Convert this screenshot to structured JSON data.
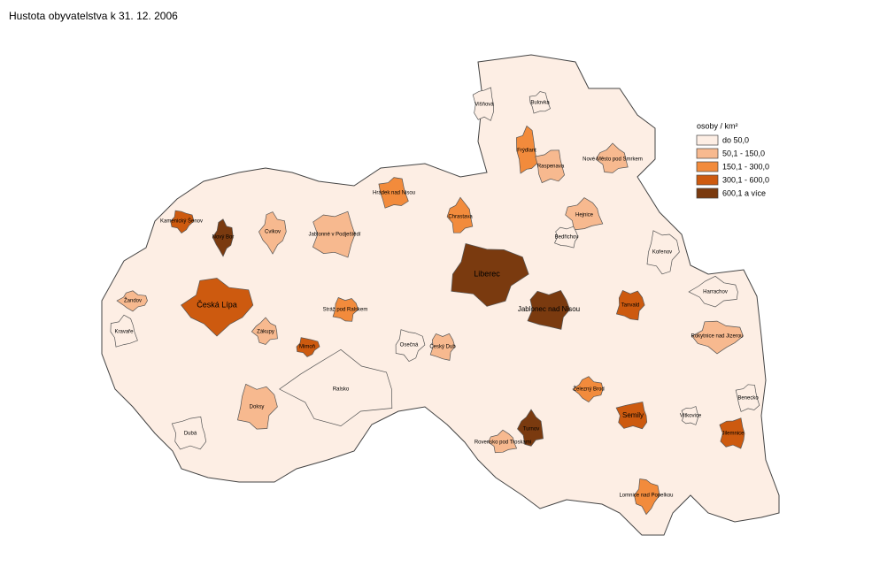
{
  "header": {
    "title": "Hustota obyvatelstva k 31. 12. 2006"
  },
  "legend": {
    "title": "osoby / km²",
    "items": [
      {
        "label": "do 50,0",
        "color": "#fdeee4"
      },
      {
        "label": "50,1 - 150,0",
        "color": "#f7b98f"
      },
      {
        "label": "150,1 - 300,0",
        "color": "#f28b3c"
      },
      {
        "label": "300,1 - 600,0",
        "color": "#cd5a0f"
      },
      {
        "label": "600,1 a více",
        "color": "#7a3a0f"
      }
    ]
  },
  "regions": [
    {
      "name": "Ralsko",
      "class": 0
    },
    {
      "name": "Česká Lípa",
      "class": 3
    },
    {
      "name": "Liberec",
      "class": 4
    },
    {
      "name": "Jablonec nad Nisou",
      "class": 4
    },
    {
      "name": "Semily",
      "class": 3
    },
    {
      "name": "Frýdlant",
      "class": 2
    },
    {
      "name": "Turnov",
      "class": 4
    },
    {
      "name": "Nový Bor",
      "class": 4
    },
    {
      "name": "Mimoň",
      "class": 3
    },
    {
      "name": "Tanvald",
      "class": 3
    },
    {
      "name": "Jilemnice",
      "class": 3
    },
    {
      "name": "Hrádek nad Nisou",
      "class": 2
    },
    {
      "name": "Chrastava",
      "class": 2
    },
    {
      "name": "Železný Brod",
      "class": 2
    },
    {
      "name": "Lomnice nad Popelkou",
      "class": 2
    },
    {
      "name": "Doksy",
      "class": 1
    },
    {
      "name": "Jablonné v Podještědí",
      "class": 1
    },
    {
      "name": "Raspenava",
      "class": 1
    },
    {
      "name": "Hejnice",
      "class": 1
    },
    {
      "name": "Harrachov",
      "class": 0
    },
    {
      "name": "Rokytnice nad Jizerou",
      "class": 1
    },
    {
      "name": "Kořenov",
      "class": 0
    },
    {
      "name": "Bedřichov",
      "class": 0
    },
    {
      "name": "Dubá",
      "class": 0
    },
    {
      "name": "Kravaře",
      "class": 0
    },
    {
      "name": "Zákupy",
      "class": 1
    },
    {
      "name": "Cvikov",
      "class": 1
    },
    {
      "name": "Osečná",
      "class": 0
    },
    {
      "name": "Český Dub",
      "class": 1
    },
    {
      "name": "Višňová",
      "class": 0
    },
    {
      "name": "Bulovka",
      "class": 0
    },
    {
      "name": "Nové Město pod Smrkem",
      "class": 1
    },
    {
      "name": "Žandov",
      "class": 1
    },
    {
      "name": "Kamenický Šenov",
      "class": 3
    },
    {
      "name": "Stráž pod Ralskem",
      "class": 2
    },
    {
      "name": "Vítkovice",
      "class": 0
    },
    {
      "name": "Benecko",
      "class": 0
    },
    {
      "name": "Rovensko pod Troskami",
      "class": 1
    }
  ]
}
